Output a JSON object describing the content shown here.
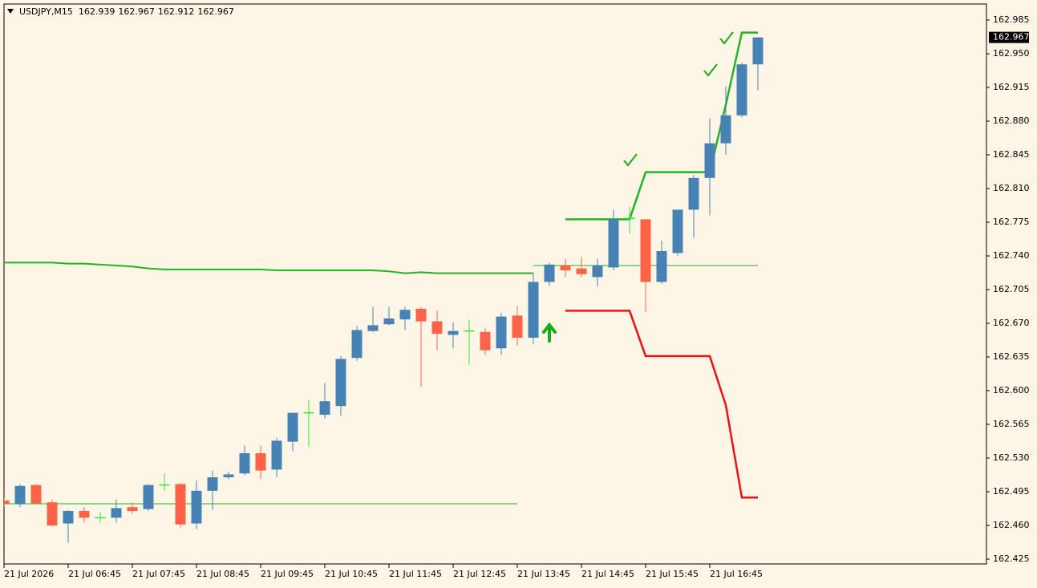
{
  "chart_data": {
    "type": "candlestick",
    "title": "USDJPY,M15",
    "categories": [
      "21 Jul 2026",
      null,
      null,
      null,
      "21 Jul 06:45",
      null,
      null,
      null,
      "21 Jul 07:45",
      null,
      null,
      null,
      "21 Jul 08:45",
      null,
      null,
      null,
      "21 Jul 09:45",
      null,
      null,
      null,
      "21 Jul 10:45",
      null,
      null,
      null,
      "21 Jul 11:45",
      null,
      null,
      null,
      "21 Jul 12:45",
      null,
      null,
      null,
      "21 Jul 13:45",
      null,
      null,
      null,
      "21 Jul 14:45",
      null,
      null,
      null,
      "21 Jul 15:45",
      null,
      null,
      null,
      "21 Jul 16:45",
      null,
      null,
      null
    ],
    "open": [
      162.486,
      162.482,
      162.502,
      162.484,
      162.462,
      162.475,
      162.468,
      162.468,
      162.479,
      162.477,
      162.502,
      162.503,
      162.462,
      162.496,
      162.51,
      162.514,
      162.535,
      162.518,
      162.547,
      162.577,
      162.575,
      162.584,
      162.634,
      162.662,
      162.669,
      162.674,
      162.685,
      162.672,
      162.658,
      162.662,
      162.661,
      162.644,
      162.678,
      162.655,
      162.713,
      162.73,
      162.727,
      162.718,
      162.728,
      162.779,
      162.778,
      162.713,
      162.743,
      162.788,
      162.821,
      162.857,
      162.886,
      162.939
    ],
    "high": [
      162.488,
      162.503,
      162.503,
      162.487,
      162.476,
      162.479,
      162.474,
      162.487,
      162.484,
      162.503,
      162.514,
      162.504,
      162.507,
      162.517,
      162.516,
      162.543,
      162.543,
      162.551,
      162.577,
      162.59,
      162.608,
      162.636,
      162.667,
      162.687,
      162.687,
      162.687,
      162.687,
      162.683,
      162.671,
      162.674,
      162.665,
      162.681,
      162.688,
      162.722,
      162.733,
      162.737,
      162.739,
      162.737,
      162.788,
      162.791,
      162.778,
      162.756,
      162.788,
      162.824,
      162.883,
      162.916,
      162.941,
      162.967
    ],
    "low": [
      162.48,
      162.479,
      162.482,
      162.459,
      162.442,
      162.463,
      162.463,
      162.463,
      162.472,
      162.475,
      162.496,
      162.458,
      162.456,
      162.476,
      162.508,
      162.512,
      162.508,
      162.51,
      162.537,
      162.542,
      162.571,
      162.574,
      162.631,
      162.661,
      162.668,
      162.663,
      162.604,
      162.642,
      162.644,
      162.627,
      162.637,
      162.637,
      162.647,
      162.648,
      162.709,
      162.718,
      162.718,
      162.708,
      162.725,
      162.763,
      162.682,
      162.711,
      162.74,
      162.759,
      162.782,
      162.845,
      162.884,
      162.912
    ],
    "close": [
      162.482,
      162.501,
      162.483,
      162.46,
      162.475,
      162.468,
      162.468,
      162.478,
      162.475,
      162.502,
      162.502,
      162.461,
      162.496,
      162.51,
      162.513,
      162.535,
      162.517,
      162.548,
      162.577,
      162.577,
      162.589,
      162.633,
      162.663,
      162.668,
      162.675,
      162.684,
      162.672,
      162.659,
      162.662,
      162.662,
      162.642,
      162.677,
      162.655,
      162.713,
      162.731,
      162.725,
      162.721,
      162.73,
      162.778,
      162.779,
      162.713,
      162.745,
      162.788,
      162.821,
      162.857,
      162.886,
      162.939,
      162.967
    ],
    "up_color": "#4682b4",
    "down_color": "#ff6347",
    "doji_color": "#32e632",
    "lines": [
      {
        "color": "#22b422",
        "values": [
          162.733,
          162.733,
          162.733,
          162.733,
          162.732,
          162.732,
          162.731,
          162.73,
          162.729,
          162.727,
          162.726,
          162.726,
          162.726,
          162.726,
          162.726,
          162.726,
          162.726,
          162.725,
          162.725,
          162.725,
          162.725,
          162.725,
          162.725,
          162.725,
          162.724,
          162.722,
          162.723,
          162.722,
          162.722,
          162.722,
          162.722,
          162.722,
          162.722,
          162.722,
          null,
          null,
          null,
          null,
          null,
          null,
          null,
          null,
          null,
          null,
          null,
          null,
          null,
          null
        ]
      },
      {
        "color": "#22b422",
        "values": [
          162.4825,
          162.4825,
          162.4825,
          162.4825,
          162.4825,
          162.4825,
          162.4825,
          162.4825,
          162.4825,
          162.4825,
          162.4825,
          162.4825,
          162.4825,
          162.4825,
          162.4825,
          162.4825,
          162.4825,
          162.4825,
          162.4825,
          162.4825,
          162.4825,
          162.4825,
          162.4825,
          162.4825,
          162.4825,
          162.4825,
          162.4825,
          162.4825,
          162.4825,
          162.4825,
          162.4825,
          162.4825,
          162.4825,
          null,
          null,
          null,
          null,
          null,
          null,
          null,
          null,
          null,
          null,
          null,
          null,
          null,
          null,
          null
        ]
      },
      {
        "color": "#22b422",
        "values": [
          null,
          null,
          null,
          null,
          null,
          null,
          null,
          null,
          null,
          null,
          null,
          null,
          null,
          null,
          null,
          null,
          null,
          null,
          null,
          null,
          null,
          null,
          null,
          null,
          null,
          null,
          null,
          null,
          null,
          null,
          null,
          null,
          null,
          162.73,
          162.73,
          162.73,
          162.73,
          162.73,
          162.73,
          162.73,
          162.73,
          162.73,
          162.73,
          162.73,
          162.73,
          162.73,
          162.73,
          162.73
        ]
      },
      {
        "color": "#22b422",
        "values": [
          null,
          null,
          null,
          null,
          null,
          null,
          null,
          null,
          null,
          null,
          null,
          null,
          null,
          null,
          null,
          null,
          null,
          null,
          null,
          null,
          null,
          null,
          null,
          null,
          null,
          null,
          null,
          null,
          null,
          null,
          null,
          null,
          null,
          null,
          null,
          162.778,
          162.778,
          162.778,
          162.778,
          162.778,
          162.827,
          162.827,
          162.827,
          162.827,
          162.827,
          162.897,
          162.972,
          162.972
        ]
      },
      {
        "color": "#ee1111",
        "values": [
          null,
          null,
          null,
          null,
          null,
          null,
          null,
          null,
          null,
          null,
          null,
          null,
          null,
          null,
          null,
          null,
          null,
          null,
          null,
          null,
          null,
          null,
          null,
          null,
          null,
          null,
          null,
          null,
          null,
          null,
          null,
          null,
          null,
          null,
          null,
          162.683,
          162.683,
          162.683,
          162.683,
          162.683,
          162.636,
          162.636,
          162.636,
          162.636,
          162.636,
          162.585,
          162.489,
          162.489
        ]
      }
    ],
    "ylim": [
      162.42,
      163.0017
    ],
    "yticks": [
      162.985,
      {
        "value": 162.95,
        "label": "162.950"
      },
      162.915,
      {
        "value": 162.88,
        "label": "162.880"
      },
      162.845,
      {
        "value": 162.81,
        "label": "162.810"
      },
      162.775,
      {
        "value": 162.74,
        "label": "162.740"
      },
      162.705,
      {
        "value": 162.67,
        "label": "162.670"
      },
      162.635,
      {
        "value": 162.6,
        "label": "162.600"
      },
      162.565,
      {
        "value": 162.53,
        "label": "162.530"
      },
      162.495,
      {
        "value": 162.46,
        "label": "162.460"
      },
      162.425
    ],
    "grid": false
  }
}
